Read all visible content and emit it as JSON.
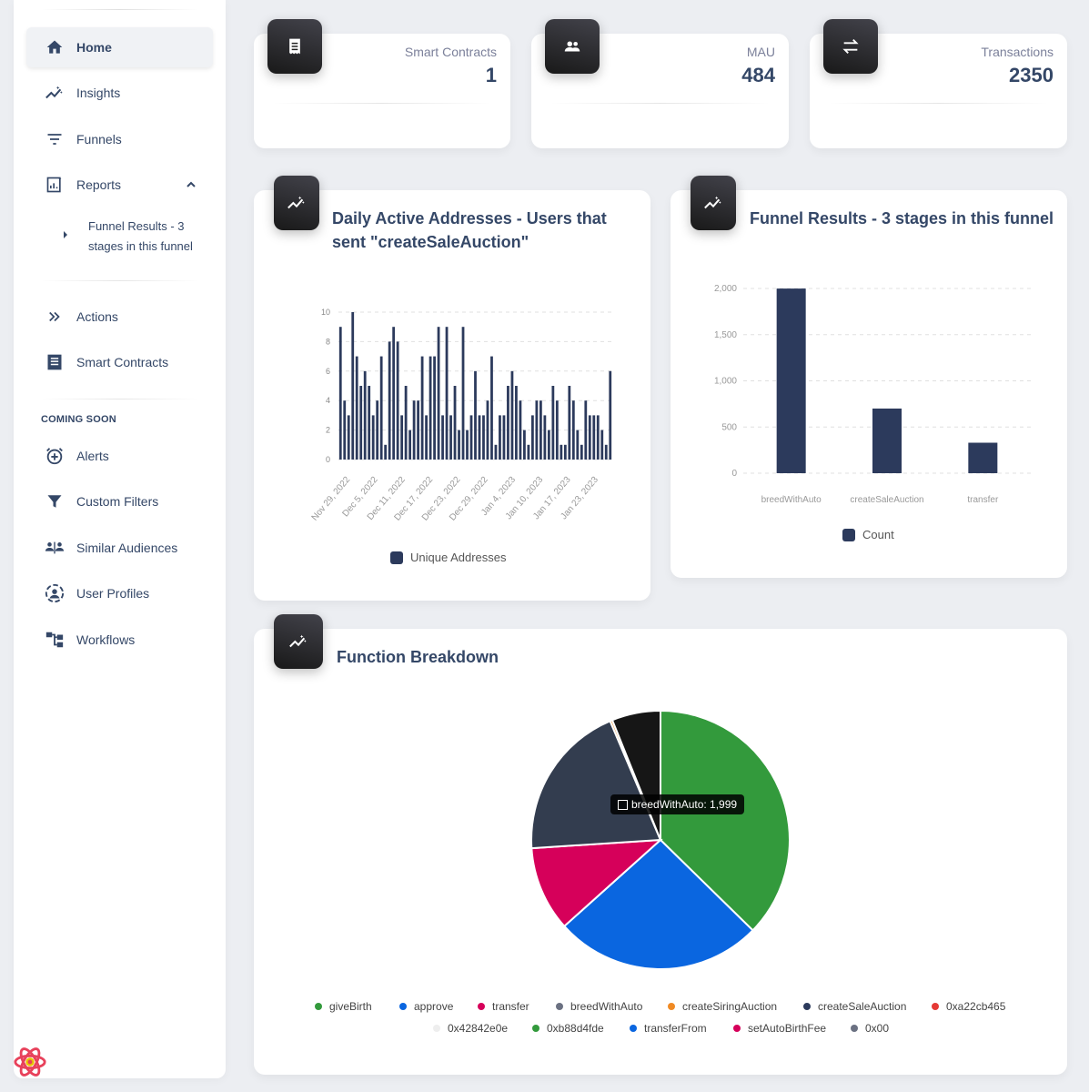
{
  "sidebar": {
    "items": [
      {
        "label": "Home",
        "icon": "home-icon"
      },
      {
        "label": "Insights",
        "icon": "insights-icon"
      },
      {
        "label": "Funnels",
        "icon": "funnels-icon"
      },
      {
        "label": "Reports",
        "icon": "reports-icon"
      },
      {
        "label": "Actions",
        "icon": "actions-icon"
      },
      {
        "label": "Smart Contracts",
        "icon": "smart-contracts-icon"
      }
    ],
    "report_sub_item": "Funnel Results - 3 stages in this funnel",
    "coming_soon_title": "COMING SOON",
    "coming_soon": [
      {
        "label": "Alerts",
        "icon": "alerts-icon"
      },
      {
        "label": "Custom Filters",
        "icon": "filter-icon"
      },
      {
        "label": "Similar Audiences",
        "icon": "similar-audiences-icon"
      },
      {
        "label": "User Profiles",
        "icon": "user-profiles-icon"
      },
      {
        "label": "Workflows",
        "icon": "workflows-icon"
      }
    ]
  },
  "stats": [
    {
      "label": "Smart Contracts",
      "value": "1",
      "icon": "receipt-icon"
    },
    {
      "label": "MAU",
      "value": "484",
      "icon": "people-icon"
    },
    {
      "label": "Transactions",
      "value": "2350",
      "icon": "swap-icon"
    }
  ],
  "daily_panel": {
    "title": "Daily Active Addresses - Users that sent \"createSaleAuction\"",
    "legend": "Unique Addresses"
  },
  "funnel_panel": {
    "title": "Funnel Results - 3 stages in this funnel",
    "legend": "Count"
  },
  "function_panel": {
    "title": "Function Breakdown",
    "tooltip": "breedWithAuto: 1,999"
  },
  "colors": {
    "bar": "#2c3a5c",
    "giveBirth": "#339a3c",
    "approve": "#0a66e0",
    "transfer": "#d6005a",
    "breedWithAuto": "#333d4f",
    "createSiringAuction": "#f08a24",
    "createSaleAuction": "#161616"
  },
  "chart_data": [
    {
      "type": "bar",
      "title": "Daily Active Addresses - Users that sent \"createSaleAuction\"",
      "x_tick_labels": [
        "Nov 29, 2022",
        "Dec 5, 2022",
        "Dec 11, 2022",
        "Dec 17, 2022",
        "Dec 23, 2022",
        "Dec 29, 2022",
        "Jan 4, 2023",
        "Jan 10, 2023",
        "Jan 17, 2023",
        "Jan 23, 2023"
      ],
      "series": [
        {
          "name": "Unique Addresses",
          "values": [
            9,
            4,
            3,
            10,
            7,
            5,
            6,
            5,
            3,
            4,
            7,
            1,
            8,
            9,
            8,
            3,
            5,
            2,
            4,
            4,
            7,
            3,
            7,
            7,
            9,
            3,
            9,
            3,
            5,
            2,
            9,
            2,
            3,
            6,
            3,
            3,
            4,
            7,
            1,
            3,
            3,
            5,
            6,
            5,
            4,
            2,
            1,
            3,
            4,
            4,
            3,
            2,
            5,
            4,
            1,
            1,
            5,
            4,
            2,
            1,
            4,
            3,
            3,
            3,
            2,
            1,
            6
          ]
        }
      ],
      "ylim": [
        0,
        10
      ],
      "y_ticks": [
        0,
        2,
        4,
        6,
        8,
        10
      ]
    },
    {
      "type": "bar",
      "title": "Funnel Results - 3 stages in this funnel",
      "categories": [
        "breedWithAuto",
        "createSaleAuction",
        "transfer"
      ],
      "series": [
        {
          "name": "Count",
          "values": [
            1999,
            700,
            330
          ]
        }
      ],
      "ylim": [
        0,
        2000
      ],
      "y_ticks": [
        0,
        500,
        1000,
        1500,
        2000
      ],
      "y_tick_labels": [
        "0",
        "500",
        "1,000",
        "1,500",
        "2,000"
      ]
    },
    {
      "type": "pie",
      "title": "Function Breakdown",
      "slices": [
        {
          "label": "giveBirth",
          "value": 3800,
          "color": "#339a3c"
        },
        {
          "label": "approve",
          "value": 2650,
          "color": "#0a66e0"
        },
        {
          "label": "transfer",
          "value": 1080,
          "color": "#d6005a"
        },
        {
          "label": "breedWithAuto",
          "value": 1999,
          "color": "#333d4f"
        },
        {
          "label": "createSiringAuction",
          "value": 30,
          "color": "#f08a24"
        },
        {
          "label": "createSaleAuction",
          "value": 620,
          "color": "#161616"
        }
      ],
      "legend": [
        {
          "label": "giveBirth",
          "color": "#339a3c"
        },
        {
          "label": "approve",
          "color": "#0a66e0"
        },
        {
          "label": "transfer",
          "color": "#d6005a"
        },
        {
          "label": "breedWithAuto",
          "color": "#6b7182"
        },
        {
          "label": "createSiringAuction",
          "color": "#f08a24"
        },
        {
          "label": "createSaleAuction",
          "color": "#2c3a5c"
        },
        {
          "label": "0xa22cb465",
          "color": "#e53935"
        },
        {
          "label": "0x42842e0e",
          "color": "#eeeeee"
        },
        {
          "label": "0xb88d4fde",
          "color": "#339a3c"
        },
        {
          "label": "transferFrom",
          "color": "#0a66e0"
        },
        {
          "label": "setAutoBirthFee",
          "color": "#d6005a"
        },
        {
          "label": "0x00",
          "color": "#6b7182"
        }
      ]
    }
  ]
}
